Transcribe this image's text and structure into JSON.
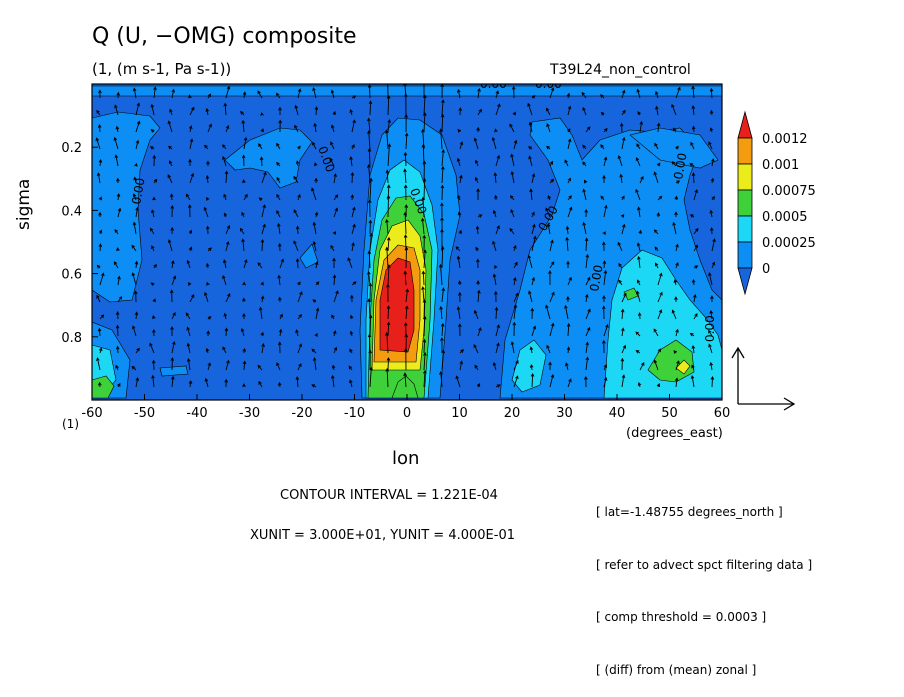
{
  "chart_data": {
    "type": "heatmap",
    "title": "Q (U, −OMG) composite",
    "subtitle": "(1, (m s-1, Pa s-1))",
    "run_name": "T39L24_non_control",
    "xlabel": "lon",
    "xunit_label": "(degrees_east)",
    "ylabel": "sigma",
    "scale_label": "(1)",
    "xlim": [
      -60,
      60
    ],
    "ylim": [
      1.0,
      0.0
    ],
    "y_inverted": true,
    "x_ticks": [
      "-60",
      "-50",
      "-40",
      "-30",
      "-20",
      "-10",
      "0",
      "10",
      "20",
      "30",
      "40",
      "50",
      "60"
    ],
    "y_ticks": [
      "0.2",
      "0.4",
      "0.6",
      "0.8"
    ],
    "colorbar": {
      "levels": [
        "0.0012",
        "0.001",
        "0.00075",
        "0.0005",
        "0.00025",
        "0"
      ],
      "colors": [
        "#e8201c",
        "#f49c10",
        "#ecec1c",
        "#3ed13a",
        "#1cd8f4",
        "#0c8ef4",
        "#1665dc"
      ]
    },
    "contour_labels": [
      "0.00",
      "0.00",
      "0.00",
      "0.00",
      "0.00",
      "0.00",
      "0.00",
      "0.00",
      "0.00",
      "0.00"
    ],
    "features": [
      {
        "name": "equatorial maximum",
        "lon": 0,
        "sigma_range": [
          0.3,
          1.0
        ],
        "peak": 0.0012
      },
      {
        "name": "eastern maximum",
        "lon": 52,
        "sigma_range": [
          0.6,
          1.0
        ],
        "peak": 0.0005
      },
      {
        "name": "western lower-level patch",
        "lon": -57,
        "sigma_range": [
          0.8,
          1.0
        ],
        "peak": 0.0005
      }
    ],
    "contour_interval": "CONTOUR INTERVAL = 1.221E-04",
    "vector_units": "XUNIT = 3.000E+01, YUNIT = 4.000E-01",
    "notes": [
      "[ lat=-1.48755 degrees_north ]",
      "[ refer to advect spct filtering data ]",
      "[ comp threshold = 0.0003 ]",
      "[ (diff) from (mean) zonal ]"
    ]
  }
}
